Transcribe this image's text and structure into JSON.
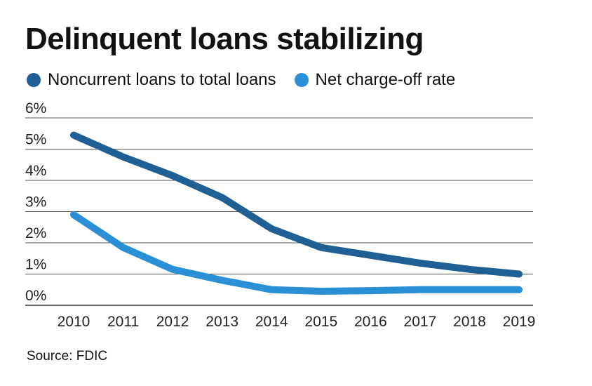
{
  "chart_data": {
    "type": "line",
    "title": "Delinquent loans stabilizing",
    "xlabel": "",
    "ylabel": "",
    "categories": [
      "2010",
      "2011",
      "2012",
      "2013",
      "2014",
      "2015",
      "2016",
      "2017",
      "2018",
      "2019"
    ],
    "y_ticks": [
      "0%",
      "1%",
      "2%",
      "3%",
      "4%",
      "5%",
      "6%"
    ],
    "ylim": [
      0,
      6
    ],
    "grid": true,
    "legend_position": "top-left",
    "series": [
      {
        "name": "Noncurrent loans to total loans",
        "color": "#1f5f93",
        "values": [
          5.45,
          4.75,
          4.15,
          3.45,
          2.45,
          1.85,
          1.6,
          1.35,
          1.15,
          1.0
        ]
      },
      {
        "name": "Net charge-off rate",
        "color": "#2b8fd6",
        "values": [
          2.9,
          1.85,
          1.15,
          0.8,
          0.5,
          0.45,
          0.47,
          0.5,
          0.5,
          0.5
        ]
      }
    ]
  },
  "source": "Source: FDIC"
}
